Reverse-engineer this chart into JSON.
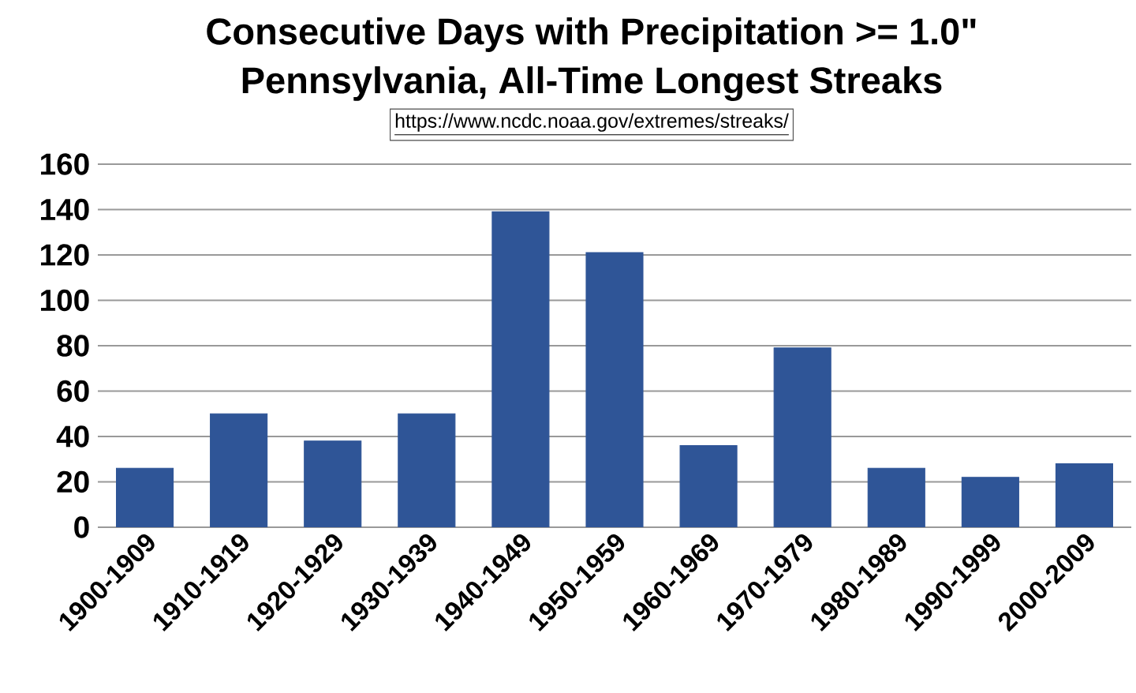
{
  "chart_data": {
    "type": "bar",
    "title": "Consecutive Days with Precipitation >= 1.0\"",
    "subtitle": "Pennsylvania, All-Time Longest Streaks",
    "annotations": [
      "https://www.ncdc.noaa.gov/extremes/streaks/"
    ],
    "categories": [
      "1900-1909",
      "1910-1919",
      "1920-1929",
      "1930-1939",
      "1940-1949",
      "1950-1959",
      "1960-1969",
      "1970-1979",
      "1980-1989",
      "1990-1999",
      "2000-2009"
    ],
    "values": [
      26,
      50,
      38,
      50,
      139,
      121,
      36,
      79,
      26,
      22,
      28
    ],
    "color": "#2f5597",
    "ylim": [
      0,
      160
    ],
    "yticks": [
      0,
      20,
      40,
      60,
      80,
      100,
      120,
      140,
      160
    ],
    "grid": "y"
  }
}
